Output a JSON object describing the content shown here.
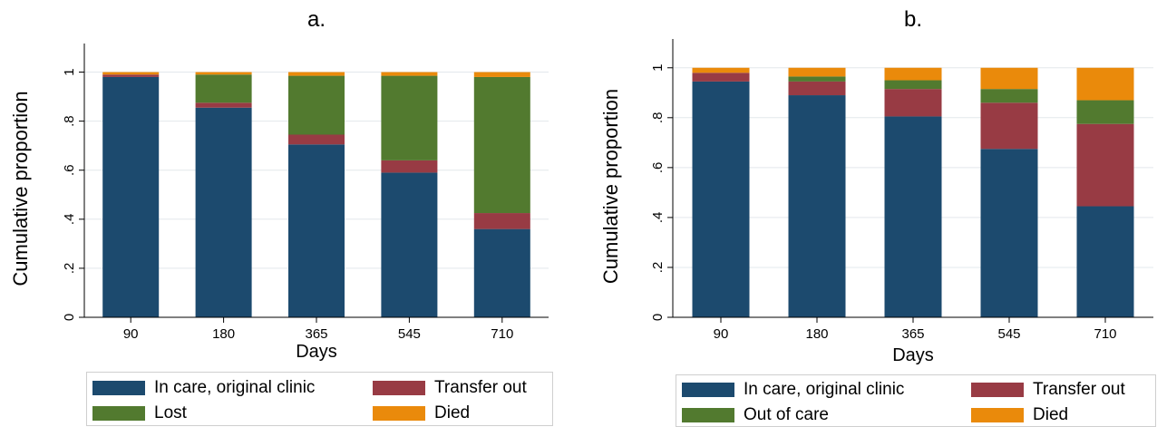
{
  "chart_data": [
    {
      "type": "bar",
      "stacked": true,
      "title": "a.",
      "xlabel": "Days",
      "ylabel": "Cumulative proportion",
      "ylim": [
        0,
        1.05
      ],
      "yticks": [
        "0",
        ".2",
        ".4",
        ".6",
        ".8",
        "1"
      ],
      "ytick_values": [
        0,
        0.2,
        0.4,
        0.6,
        0.8,
        1.0
      ],
      "grid": true,
      "legend_position": "bottom",
      "categories": [
        "90",
        "180",
        "365",
        "545",
        "710"
      ],
      "series": [
        {
          "name": "In care, original clinic",
          "color": "#1c4a6e",
          "values": [
            0.98,
            0.855,
            0.705,
            0.59,
            0.36
          ]
        },
        {
          "name": "Transfer out",
          "color": "#983b44",
          "values": [
            0.01,
            0.02,
            0.04,
            0.05,
            0.065
          ]
        },
        {
          "name": "Lost",
          "color": "#527a2f",
          "values": [
            0.0,
            0.115,
            0.24,
            0.345,
            0.555
          ]
        },
        {
          "name": "Died",
          "color": "#ea8a0b",
          "values": [
            0.01,
            0.01,
            0.015,
            0.015,
            0.02
          ]
        }
      ]
    },
    {
      "type": "bar",
      "stacked": true,
      "title": "b.",
      "xlabel": "Days",
      "ylabel": "Cumulative proportion",
      "ylim": [
        0,
        1.05
      ],
      "yticks": [
        "0",
        ".2",
        ".4",
        ".6",
        ".8",
        "1"
      ],
      "ytick_values": [
        0,
        0.2,
        0.4,
        0.6,
        0.8,
        1.0
      ],
      "grid": true,
      "legend_position": "bottom",
      "categories": [
        "90",
        "180",
        "365",
        "545",
        "710"
      ],
      "series": [
        {
          "name": "In care, original clinic",
          "color": "#1c4a6e",
          "values": [
            0.945,
            0.89,
            0.805,
            0.675,
            0.445
          ]
        },
        {
          "name": "Transfer out",
          "color": "#983b44",
          "values": [
            0.035,
            0.055,
            0.11,
            0.185,
            0.33
          ]
        },
        {
          "name": "Out of care",
          "color": "#527a2f",
          "values": [
            0.0,
            0.02,
            0.035,
            0.055,
            0.095
          ]
        },
        {
          "name": "Died",
          "color": "#ea8a0b",
          "values": [
            0.02,
            0.035,
            0.05,
            0.085,
            0.13
          ]
        }
      ]
    }
  ]
}
